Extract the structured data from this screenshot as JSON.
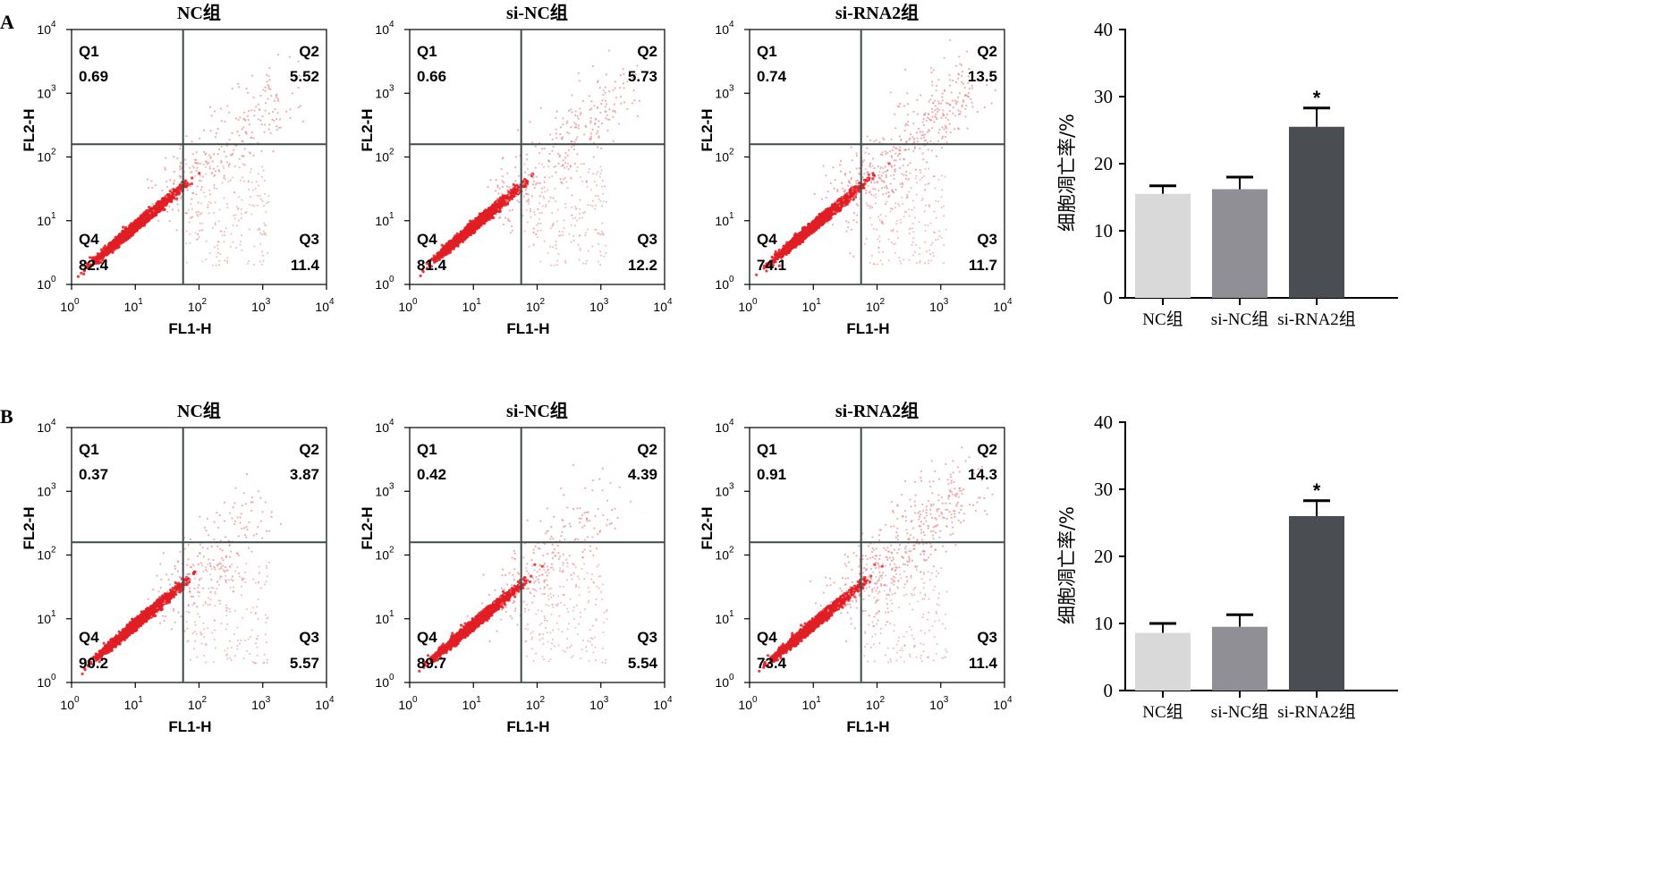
{
  "colors": {
    "dot": "#e01e24",
    "dot_light": "#e88a90",
    "bar_nc": "#d9d9d9",
    "bar_sinc": "#8f8f95",
    "bar_sirna": "#4a4e52",
    "axis": "#000000",
    "quad_line": "#3f4a4a"
  },
  "panels": [
    {
      "label": "A",
      "flow_plots": [
        {
          "title": "NC组",
          "q1": "0.69",
          "q2": "5.52",
          "q3": "11.4",
          "q4": "82.4",
          "spread": 0.75
        },
        {
          "title": "si-NC组",
          "q1": "0.66",
          "q2": "5.73",
          "q3": "12.2",
          "q4": "81.4",
          "spread": 0.8
        },
        {
          "title": "si-RNA2组",
          "q1": "0.74",
          "q2": "13.5",
          "q3": "11.7",
          "q4": "74.1",
          "spread": 1.2
        }
      ]
    },
    {
      "label": "B",
      "flow_plots": [
        {
          "title": "NC组",
          "q1": "0.37",
          "q2": "3.87",
          "q3": "5.57",
          "q4": "90.2",
          "spread": 0.55
        },
        {
          "title": "si-NC组",
          "q1": "0.42",
          "q2": "4.39",
          "q3": "5.54",
          "q4": "89.7",
          "spread": 0.6
        },
        {
          "title": "si-RNA2组",
          "q1": "0.91",
          "q2": "14.3",
          "q3": "11.4",
          "q4": "73.4",
          "spread": 1.25
        }
      ]
    }
  ],
  "flow_axes": {
    "xlabel": "FL1-H",
    "ylabel": "FL2-H",
    "tick_base": "10",
    "tick_exponents": [
      "0",
      "1",
      "2",
      "3",
      "4"
    ],
    "range_log10": [
      0,
      4
    ],
    "gate_log10": [
      1.75,
      2.2
    ]
  },
  "chart_data": [
    {
      "type": "bar",
      "panel": "A",
      "categories": [
        "NC组",
        "si-NC组",
        "si-RNA2组"
      ],
      "values": [
        15.5,
        16.2,
        25.5
      ],
      "errors": [
        1.2,
        1.8,
        2.8
      ],
      "ylabel": "细胞凋亡率/%",
      "ylim": [
        0,
        40
      ],
      "yticks": [
        "0",
        "10",
        "20",
        "30",
        "40"
      ],
      "annotations": [
        "",
        "",
        "*"
      ],
      "grid": false
    },
    {
      "type": "bar",
      "panel": "B",
      "categories": [
        "NC组",
        "si-NC组",
        "si-RNA2组"
      ],
      "values": [
        8.6,
        9.5,
        26.0
      ],
      "errors": [
        1.4,
        1.8,
        2.3
      ],
      "ylabel": "细胞凋亡率/%",
      "ylim": [
        0,
        40
      ],
      "yticks": [
        "0",
        "10",
        "20",
        "30",
        "40"
      ],
      "annotations": [
        "",
        "",
        "*"
      ],
      "grid": false
    }
  ]
}
